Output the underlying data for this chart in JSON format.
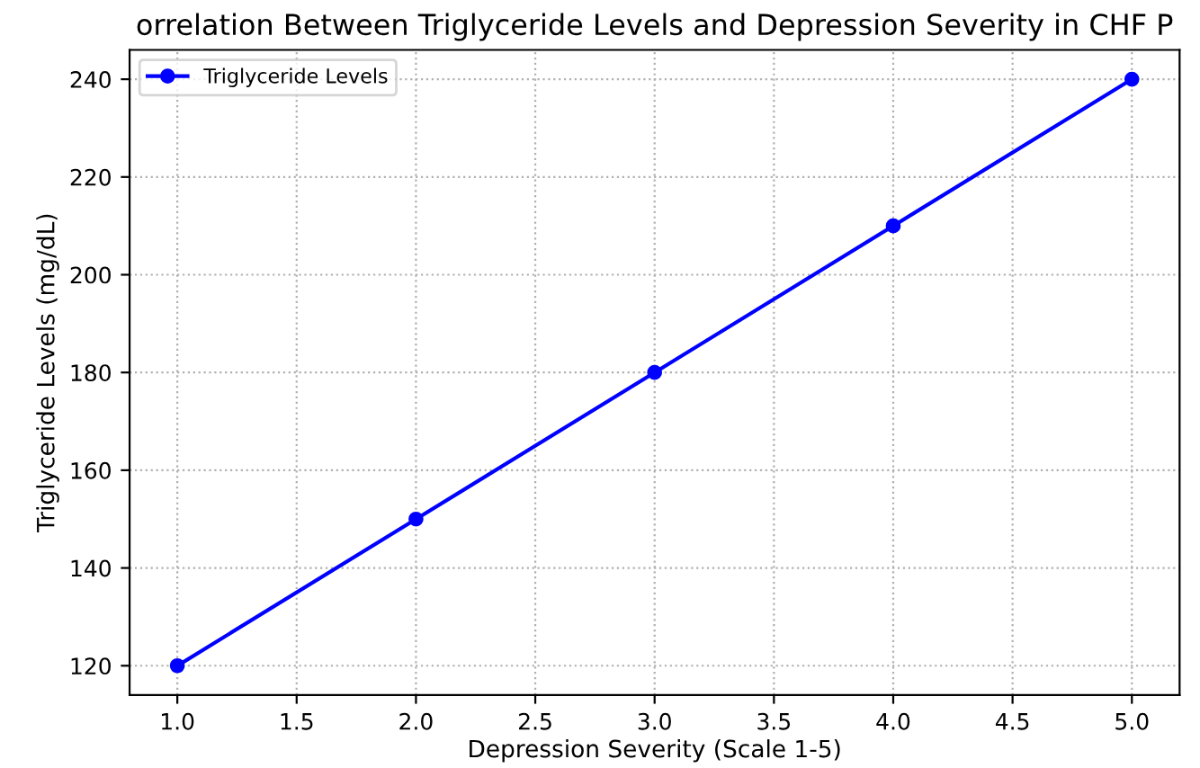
{
  "chart_data": {
    "type": "line",
    "title": "orrelation Between Triglyceride Levels and Depression Severity in CHF P",
    "xlabel": "Depression Severity (Scale 1-5)",
    "ylabel": "Triglyceride Levels (mg/dL)",
    "x": [
      1,
      2,
      3,
      4,
      5
    ],
    "series": [
      {
        "name": "Triglyceride Levels",
        "color": "#0000ff",
        "values": [
          120,
          150,
          180,
          210,
          240
        ]
      }
    ],
    "xlim": [
      0.8,
      5.2
    ],
    "xticks": [
      {
        "value": 1,
        "label": "1.0"
      },
      {
        "value": 1.5,
        "label": "1.5"
      },
      {
        "value": 2,
        "label": "2.0"
      },
      {
        "value": 2.5,
        "label": "2.5"
      },
      {
        "value": 3,
        "label": "3.0"
      },
      {
        "value": 3.5,
        "label": "3.5"
      },
      {
        "value": 4,
        "label": "4.0"
      },
      {
        "value": 4.5,
        "label": "4.5"
      },
      {
        "value": 5,
        "label": "5.0"
      }
    ],
    "ylim": [
      114,
      246
    ],
    "yticks": [
      120,
      140,
      160,
      180,
      200,
      220,
      240
    ],
    "grid": true,
    "legend": "top left",
    "marker": "circle",
    "line_style": "solid"
  }
}
